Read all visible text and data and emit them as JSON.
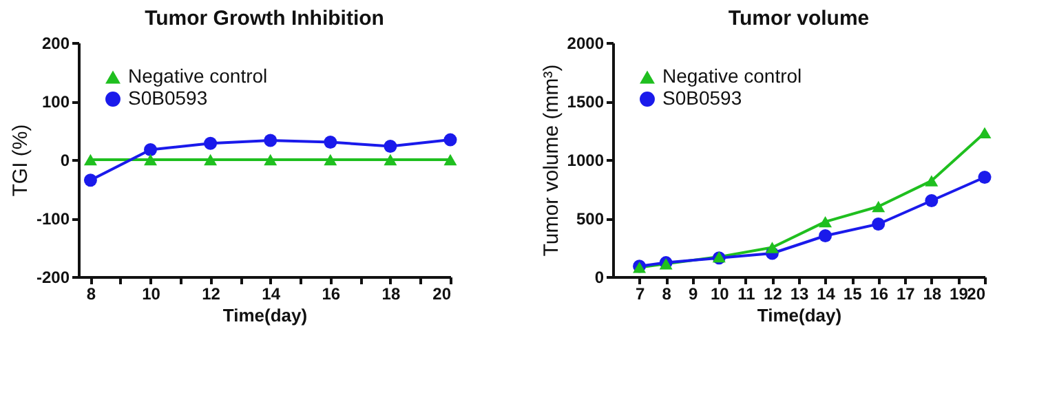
{
  "chart_data": [
    {
      "type": "line",
      "title": "Tumor Growth Inhibition",
      "xlabel": "Time(day)",
      "ylabel": "TGI (%)",
      "x": [
        8,
        10,
        12,
        14,
        16,
        18,
        20
      ],
      "xlim": [
        7.6,
        20
      ],
      "xticks": [
        8,
        {
          "value": 9,
          "label": null
        },
        10,
        {
          "value": 11,
          "label": null
        },
        12,
        {
          "value": 13,
          "label": null
        },
        14,
        {
          "value": 15,
          "label": null
        },
        16,
        {
          "value": 17,
          "label": null
        },
        18,
        {
          "value": 19,
          "label": null
        },
        20
      ],
      "ylim": [
        -200,
        200
      ],
      "yticks": [
        -200,
        -100,
        0,
        100,
        200
      ],
      "grid": false,
      "legend": "top left",
      "line_style": "solid",
      "series": [
        {
          "name": "Negative control",
          "color": "#1fbf1f",
          "marker": "triangle",
          "values": [
            0,
            0,
            0,
            0,
            0,
            0,
            0
          ]
        },
        {
          "name": "S0B0593",
          "color": "#1a1aeb",
          "marker": "circle",
          "values": [
            -35,
            17,
            28,
            33,
            30,
            23,
            34
          ]
        }
      ]
    },
    {
      "type": "line",
      "title": "Tumor volume",
      "xlabel": "Time(day)",
      "ylabel": "Tumor volume (mm³)",
      "x": [
        7,
        8,
        10,
        12,
        14,
        16,
        18,
        20
      ],
      "xlim": [
        6,
        20
      ],
      "xticks": [
        7,
        8,
        9,
        10,
        11,
        12,
        13,
        14,
        15,
        16,
        17,
        18,
        19,
        20
      ],
      "ylim": [
        0,
        2000
      ],
      "yticks": [
        0,
        500,
        1000,
        1500,
        2000
      ],
      "grid": false,
      "legend": "top left",
      "line_style": "solid",
      "series": [
        {
          "name": "Negative control",
          "color": "#1fbf1f",
          "marker": "triangle",
          "values": [
            80,
            110,
            170,
            250,
            470,
            600,
            820,
            1230
          ]
        },
        {
          "name": "S0B0593",
          "color": "#1a1aeb",
          "marker": "circle",
          "values": [
            90,
            120,
            160,
            200,
            350,
            450,
            650,
            850
          ]
        }
      ]
    }
  ]
}
